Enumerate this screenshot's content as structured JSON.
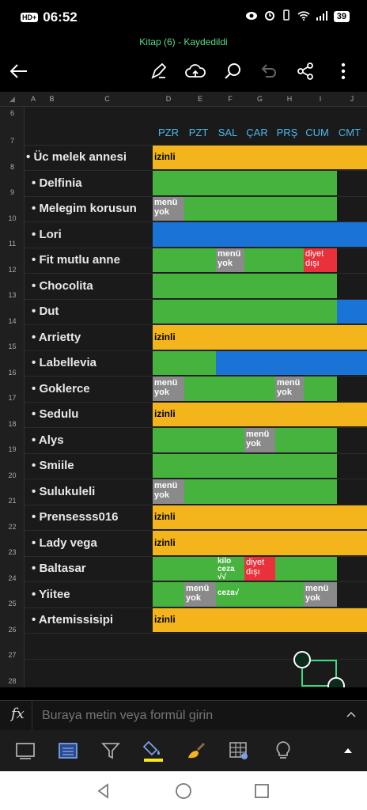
{
  "status": {
    "hd": "HD+",
    "time": "06:52",
    "battery": "39"
  },
  "doc": {
    "title": "Kitap (6) - Kaydedildi"
  },
  "toolbar": {
    "icons": [
      "back-arrow-icon",
      "pen-icon",
      "cloud-upload-icon",
      "search-icon",
      "undo-icon",
      "share-icon",
      "more-icon"
    ]
  },
  "columns": [
    "A",
    "B",
    "C",
    "D",
    "E",
    "F",
    "G",
    "H",
    "I",
    "J"
  ],
  "rows": [
    "6",
    "7",
    "8",
    "9",
    "10",
    "11",
    "12",
    "13",
    "14",
    "15",
    "16",
    "17",
    "18",
    "19",
    "20",
    "21",
    "22",
    "23",
    "24",
    "25",
    "26",
    "27",
    "28"
  ],
  "days": [
    "PZR",
    "PZT",
    "SAL",
    "ÇAR",
    "PRŞ",
    "CUM",
    "CMT"
  ],
  "members": [
    {
      "bullet": "•",
      "name": "Üc melek annesi"
    },
    {
      "bullet": "•",
      "name": "Delfinia"
    },
    {
      "bullet": "•",
      "name": "Melegim korusun"
    },
    {
      "bullet": "•",
      "name": "Lori"
    },
    {
      "bullet": "•",
      "name": "Fit mutlu anne"
    },
    {
      "bullet": "•",
      "name": "Chocolita"
    },
    {
      "bullet": "•",
      "name": "Dut"
    },
    {
      "bullet": "•",
      "name": "Arrietty"
    },
    {
      "bullet": "•",
      "name": "Labellevia"
    },
    {
      "bullet": "•",
      "name": "Goklerce"
    },
    {
      "bullet": "•",
      "name": "Sedulu"
    },
    {
      "bullet": "•",
      "name": "Alys"
    },
    {
      "bullet": "•",
      "name": "Smiile"
    },
    {
      "bullet": "•",
      "name": "Sulukuleli"
    },
    {
      "bullet": "•",
      "name": "Prensesss016"
    },
    {
      "bullet": "•",
      "name": "Lady vega"
    },
    {
      "bullet": "•",
      "name": "Baltasar"
    },
    {
      "bullet": "•",
      "name": "Yiitee"
    },
    {
      "bullet": "•",
      "name": "Artemissisipi"
    }
  ],
  "cell_texts": {
    "izinli": "izinli",
    "menu1": "menü",
    "menu2": "yok",
    "diyet1": "diyet",
    "diyet2": "dışı",
    "kilo1": "kilo",
    "kilo2": "ceza",
    "kilo3": "√√",
    "ceza": "ceza√"
  },
  "colors": {
    "green": "#47b33f",
    "yellow": "#f3b51b",
    "blue": "#1a73d6",
    "gray": "#8a8a8a",
    "red": "#e8313a",
    "dark": "#1a1a1a",
    "day_blue": "#49b8e8",
    "accent_green": "#59d88c"
  },
  "formula": {
    "fx": "fx",
    "placeholder": "Buraya metin veya formül girin"
  },
  "ribbon": {
    "icons": [
      "slide-view-icon",
      "card-view-icon",
      "filter-icon",
      "fill-color-icon",
      "format-brush-icon",
      "insert-table-icon",
      "lightbulb-icon",
      "expand-up-icon"
    ]
  },
  "navbar": {
    "icons": [
      "back-nav-icon",
      "home-nav-icon",
      "recents-nav-icon"
    ]
  }
}
